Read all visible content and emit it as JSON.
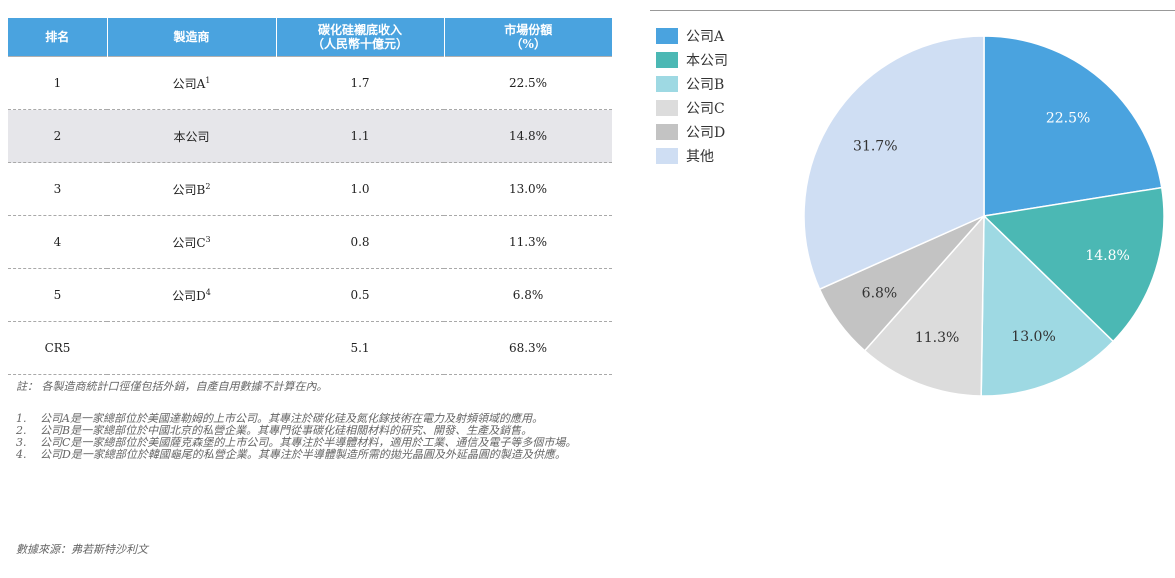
{
  "table": {
    "headers": [
      {
        "line1": "排名",
        "line2": ""
      },
      {
        "line1": "製造商",
        "line2": ""
      },
      {
        "line1": "碳化硅襯底收入",
        "line2": "（人民幣十億元）"
      },
      {
        "line1": "市場份額",
        "line2": "（%）"
      }
    ],
    "rows": [
      {
        "rank": "1",
        "maker": "公司A",
        "sup": "1",
        "revenue": "1.7",
        "share": "22.5%",
        "shaded": false
      },
      {
        "rank": "2",
        "maker": "本公司",
        "sup": "",
        "revenue": "1.1",
        "share": "14.8%",
        "shaded": true
      },
      {
        "rank": "3",
        "maker": "公司B",
        "sup": "2",
        "revenue": "1.0",
        "share": "13.0%",
        "shaded": false
      },
      {
        "rank": "4",
        "maker": "公司C",
        "sup": "3",
        "revenue": "0.8",
        "share": "11.3%",
        "shaded": false
      },
      {
        "rank": "5",
        "maker": "公司D",
        "sup": "4",
        "revenue": "0.5",
        "share": "6.8%",
        "shaded": false
      },
      {
        "rank": "CR5",
        "maker": "",
        "sup": "",
        "revenue": "5.1",
        "share": "68.3%",
        "shaded": false
      }
    ]
  },
  "notes": {
    "main": "註： 各製造商統計口徑僅包括外銷，自產自用數據不計算在內。",
    "footnotes": [
      {
        "num": "1.",
        "text": "公司A是一家總部位於美國達勒姆的上市公司。其專注於碳化硅及氮化鎵技術在電力及射頻領域的應用。"
      },
      {
        "num": "2.",
        "text": "公司B是一家總部位於中國北京的私營企業。其專門從事碳化硅相關材料的研究、開發、生產及銷售。"
      },
      {
        "num": "3.",
        "text": "公司C是一家總部位於美國薩克森堡的上市公司。其專注於半導體材料，適用於工業、通信及電子等多個市場。"
      },
      {
        "num": "4.",
        "text": "公司D是一家總部位於韓國龜尾的私營企業。其專注於半導體製造所需的拋光晶圓及外延晶圓的製造及供應。"
      }
    ],
    "source": "數據來源：弗若斯特沙利文"
  },
  "chart_data": {
    "type": "pie",
    "categories": [
      "公司A",
      "本公司",
      "公司B",
      "公司C",
      "公司D",
      "其他"
    ],
    "values": [
      22.5,
      14.8,
      13.0,
      11.3,
      6.8,
      31.7
    ],
    "labels": [
      "22.5%",
      "14.8%",
      "13.0%",
      "11.3%",
      "6.8%",
      "31.7%"
    ],
    "colors": [
      "#4aa3df",
      "#4bb8b4",
      "#9ed9e3",
      "#dcdcdc",
      "#c3c3c3",
      "#cfdef3"
    ],
    "label_colors": [
      "#ffffff",
      "#ffffff",
      "#333333",
      "#333333",
      "#333333",
      "#333333"
    ],
    "legend_position": "top-left"
  }
}
